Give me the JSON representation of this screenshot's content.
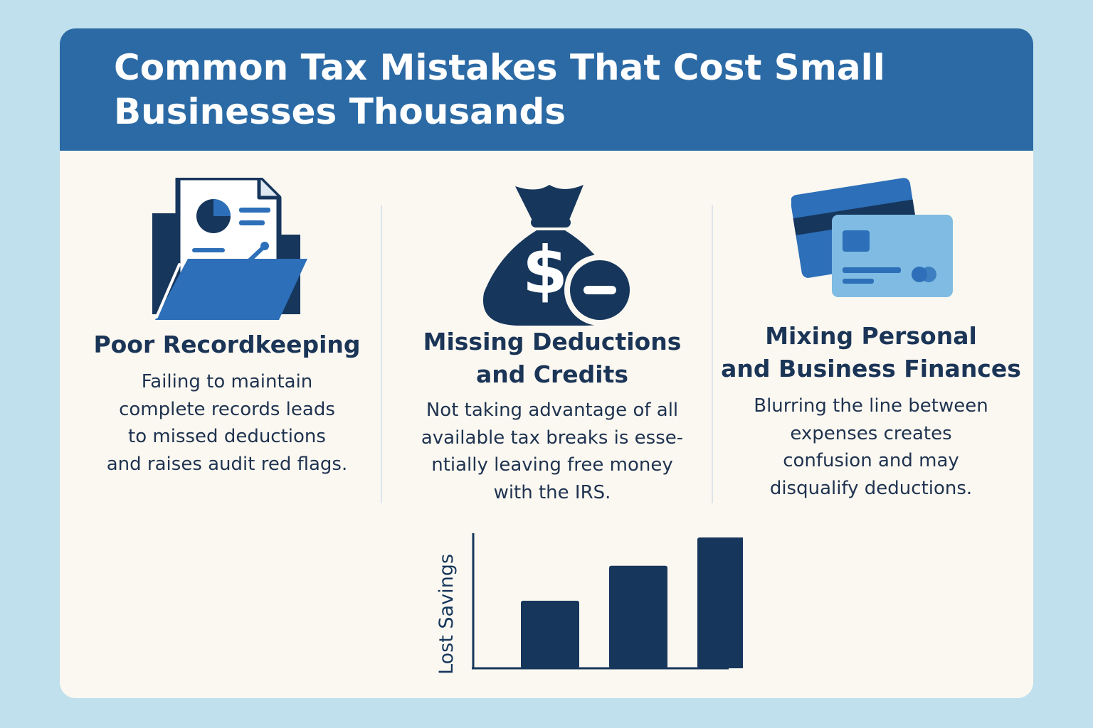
{
  "title": "Common Tax Mistakes That Cost Small Businesses Thousands",
  "colors": {
    "background": "#bfe0ec",
    "banner": "#2b6aa5",
    "card": "#fbf8f1",
    "navy": "#16365c",
    "blue": "#2d6fb8",
    "light_blue": "#7fbbe2"
  },
  "sections": [
    {
      "icon": "document-folder-icon",
      "heading": "Poor Recordkeeping",
      "lines": [
        "Failing to maintain",
        "complete records leads",
        "to missed deductions",
        "and raises audit red flags."
      ]
    },
    {
      "icon": "money-bag-minus-icon",
      "heading_lines": [
        "Missing Deductions",
        "and Credits"
      ],
      "lines": [
        "Not taking advantage of all",
        "available tax breaks is esse-",
        "ntially leaving free money",
        "with the IRS."
      ]
    },
    {
      "icon": "credit-cards-icon",
      "heading_lines": [
        "Mixing Personal",
        "and Business Finances"
      ],
      "lines": [
        "Blurring the line between",
        "expenses creates",
        "confusion and may",
        "disqualify deductions."
      ]
    }
  ],
  "chart_data": {
    "type": "bar",
    "ylabel": "Lost Savings",
    "values": [
      110,
      167,
      213
    ],
    "ylim": [
      0,
      220
    ]
  }
}
